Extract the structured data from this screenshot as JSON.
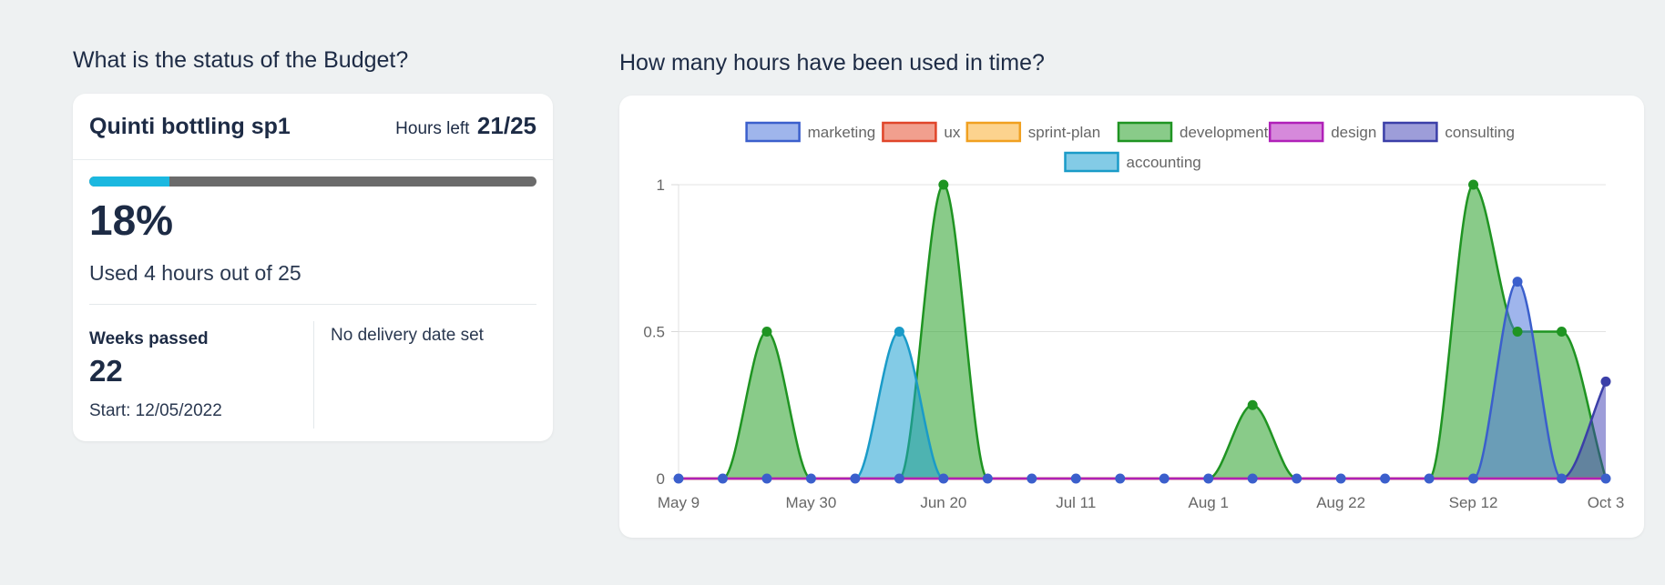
{
  "headings": {
    "budget": "What is the status of the Budget?",
    "hours": "How many hours have been used in time?"
  },
  "budget": {
    "project_name": "Quinti bottling sp1",
    "hours_left_label": "Hours left",
    "hours_left_value": "21/25",
    "progress_fraction": 0.18,
    "percent_text": "18%",
    "used_text": "Used 4 hours out of 25",
    "weeks_label": "Weeks passed",
    "weeks_value": "22",
    "start_text": "Start: 12/05/2022",
    "delivery_text": "No delivery date set",
    "colors": {
      "progress_fill": "#1bb8e0",
      "progress_track": "#6b6b6b"
    }
  },
  "chart_data": {
    "type": "area",
    "title": "",
    "xlabel": "",
    "ylabel": "",
    "x": [
      "May 9",
      "May 16",
      "May 23",
      "May 30",
      "Jun 6",
      "Jun 13",
      "Jun 20",
      "Jun 27",
      "Jul 4",
      "Jul 11",
      "Jul 18",
      "Jul 25",
      "Aug 1",
      "Aug 8",
      "Aug 15",
      "Aug 22",
      "Aug 29",
      "Sep 5",
      "Sep 12",
      "Sep 19",
      "Sep 26",
      "Oct 3"
    ],
    "x_tick_labels": [
      "May 9",
      "May 30",
      "Jun 20",
      "Jul 11",
      "Aug 1",
      "Aug 22",
      "Sep 12",
      "Oct 3"
    ],
    "y_ticks": [
      "0",
      "0.5",
      "1"
    ],
    "ylim": [
      0,
      1
    ],
    "grid": true,
    "legend_position": "top",
    "series": [
      {
        "name": "marketing",
        "color": "#3b5fcc",
        "fill": "rgba(80,120,220,0.55)",
        "values": [
          0,
          0,
          0,
          0,
          0,
          0,
          0,
          0,
          0,
          0,
          0,
          0,
          0,
          0,
          0,
          0,
          0,
          0,
          0,
          0.67,
          0,
          0
        ]
      },
      {
        "name": "ux",
        "color": "#e0452a",
        "fill": "rgba(230,80,50,0.55)",
        "values": [
          0,
          0,
          0,
          0,
          0,
          0,
          0,
          0,
          0,
          0,
          0,
          0,
          0,
          0,
          0,
          0,
          0,
          0,
          0,
          0,
          0,
          0
        ]
      },
      {
        "name": "sprint-plan",
        "color": "#f0a020",
        "fill": "rgba(250,175,50,0.55)",
        "values": [
          0,
          0,
          0,
          0,
          0,
          0,
          0,
          0,
          0,
          0,
          0,
          0,
          0,
          0,
          0,
          0,
          0,
          0,
          0,
          0,
          0,
          0
        ]
      },
      {
        "name": "development",
        "color": "#1f9422",
        "fill": "rgba(40,160,40,0.55)",
        "values": [
          0,
          0,
          0.5,
          0,
          0,
          0,
          1,
          0,
          0,
          0,
          0,
          0,
          0,
          0.25,
          0,
          0,
          0,
          0,
          1,
          0.5,
          0.5,
          0
        ]
      },
      {
        "name": "design",
        "color": "#b020b8",
        "fill": "rgba(180,40,190,0.55)",
        "values": [
          0,
          0,
          0,
          0,
          0,
          0,
          0,
          0,
          0,
          0,
          0,
          0,
          0,
          0,
          0,
          0,
          0,
          0,
          0,
          0,
          0,
          0
        ]
      },
      {
        "name": "consulting",
        "color": "#3b3fa8",
        "fill": "rgba(60,60,180,0.5)",
        "values": [
          0,
          0,
          0,
          0,
          0,
          0,
          0,
          0,
          0,
          0,
          0,
          0,
          0,
          0,
          0,
          0,
          0,
          0,
          0,
          0,
          0,
          0.33
        ]
      },
      {
        "name": "accounting",
        "color": "#1a9bc8",
        "fill": "rgba(30,160,210,0.55)",
        "values": [
          0,
          0,
          0,
          0,
          0,
          0.5,
          0,
          0,
          0,
          0,
          0,
          0,
          0,
          0,
          0,
          0,
          0,
          0,
          0,
          0,
          0,
          0
        ]
      }
    ],
    "draw_order": [
      "development",
      "accounting",
      "marketing",
      "consulting",
      "ux",
      "sprint-plan",
      "design"
    ]
  }
}
